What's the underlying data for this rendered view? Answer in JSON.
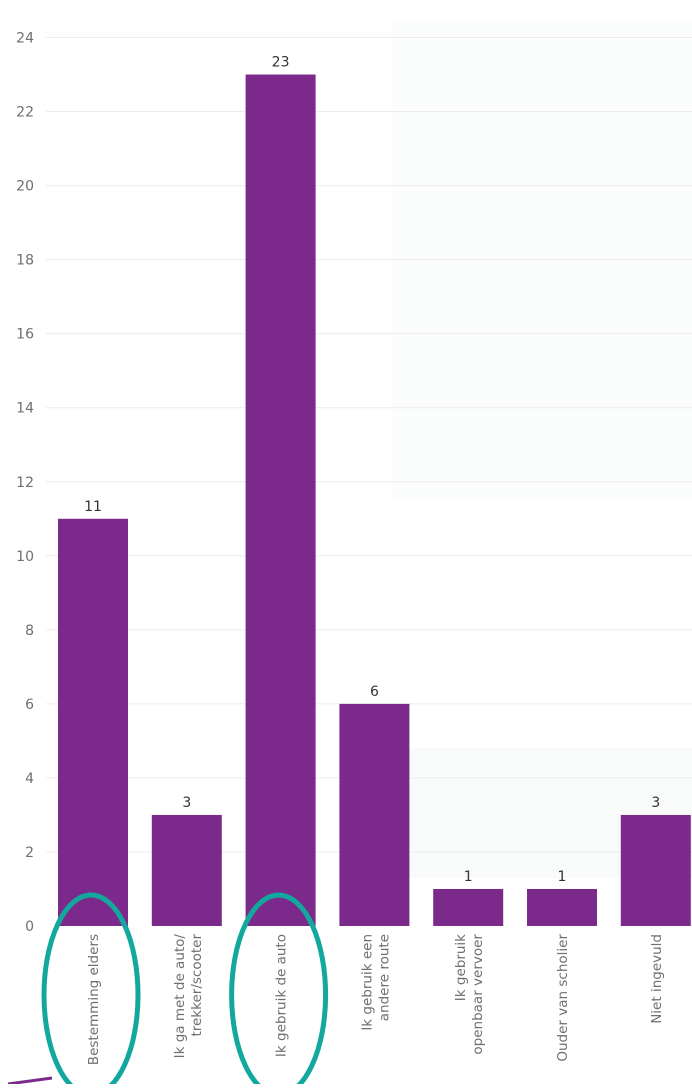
{
  "chart_data": {
    "type": "bar",
    "categories": [
      "Bestemming elders",
      "Ik ga met de auto/ trekker/scooter",
      "Ik gebruik de auto",
      "Ik gebruik een andere route",
      "Ik gebruik openbaar vervoer",
      "Ouder van scholier",
      "Niet ingevuld"
    ],
    "category_lines": [
      [
        "Bestemming elders"
      ],
      [
        "Ik ga met de auto/",
        "trekker/scooter"
      ],
      [
        "Ik gebruik de auto"
      ],
      [
        "Ik gebruik een",
        "andere route"
      ],
      [
        "Ik gebruik",
        "openbaar vervoer"
      ],
      [
        "Ouder van scholier"
      ],
      [
        "Niet ingevuld"
      ]
    ],
    "values": [
      11,
      3,
      23,
      6,
      1,
      1,
      3
    ],
    "data_labels": [
      "11",
      "3",
      "23",
      "6",
      "1",
      "1",
      "3"
    ],
    "ylim": [
      0,
      24
    ],
    "yticks": [
      "0",
      "2",
      "4",
      "6",
      "8",
      "10",
      "12",
      "14",
      "16",
      "18",
      "20",
      "22",
      "24"
    ],
    "title": "",
    "xlabel": "",
    "ylabel": "",
    "grid": true,
    "bar_color": "#7b2a8b",
    "highlighted_categories": [
      "Bestemming elders",
      "Ik gebruik de auto"
    ],
    "highlight_color": "#12a89d"
  }
}
